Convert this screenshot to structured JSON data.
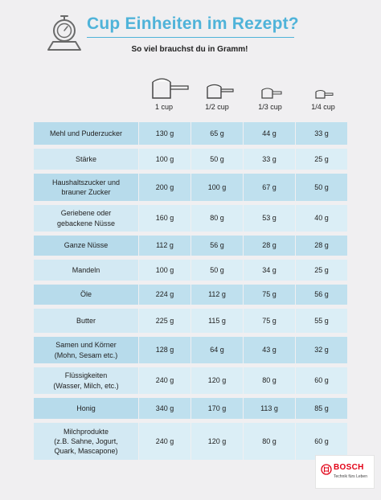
{
  "header": {
    "title": "Cup Einheiten im Rezept?",
    "subtitle": "So viel brauchst du in Gramm!",
    "accent_color": "#4fb3d9",
    "icon": "kitchen-scale-icon"
  },
  "cups": [
    {
      "label": "1 cup",
      "icon": "measuring-cup-1-icon"
    },
    {
      "label": "1/2 cup",
      "icon": "measuring-cup-half-icon"
    },
    {
      "label": "1/3 cup",
      "icon": "measuring-cup-third-icon"
    },
    {
      "label": "1/4 cup",
      "icon": "measuring-cup-quarter-icon"
    }
  ],
  "table": {
    "colors": {
      "row_dark": "#bfe0ee",
      "row_light": "#dbeef6"
    },
    "rows": [
      {
        "name": "Mehl und Puderzucker",
        "values": [
          "130 g",
          "65 g",
          "44 g",
          "33 g"
        ]
      },
      {
        "name": "Stärke",
        "values": [
          "100 g",
          "50 g",
          "33 g",
          "25 g"
        ]
      },
      {
        "name": "Haushaltszucker und\nbrauner Zucker",
        "values": [
          "200 g",
          "100 g",
          "67 g",
          "50 g"
        ]
      },
      {
        "name": "Geriebene oder\ngebackene Nüsse",
        "values": [
          "160 g",
          "80 g",
          "53 g",
          "40 g"
        ]
      },
      {
        "name": "Ganze Nüsse",
        "values": [
          "112 g",
          "56 g",
          "28 g",
          "28 g"
        ]
      },
      {
        "name": "Mandeln",
        "values": [
          "100 g",
          "50 g",
          "34 g",
          "25 g"
        ]
      },
      {
        "name": "Öle",
        "values": [
          "224 g",
          "112 g",
          "75 g",
          "56 g"
        ]
      },
      {
        "name": "Butter",
        "values": [
          "225 g",
          "115 g",
          "75 g",
          "55 g"
        ]
      },
      {
        "name": "Samen und Körner\n(Mohn, Sesam etc.)",
        "values": [
          "128 g",
          "64 g",
          "43 g",
          "32 g"
        ]
      },
      {
        "name": "Flüssigkeiten\n(Wasser, Milch, etc.)",
        "values": [
          "240 g",
          "120 g",
          "80 g",
          "60 g"
        ]
      },
      {
        "name": "Honig",
        "values": [
          "340 g",
          "170 g",
          "113 g",
          "85 g"
        ]
      },
      {
        "name": "Milchprodukte\n(z.B. Sahne, Jogurt,\nQuark, Mascapone)",
        "values": [
          "240 g",
          "120 g",
          "80 g",
          "60 g"
        ]
      }
    ]
  },
  "logo": {
    "name": "BOSCH",
    "slogan": "Technik fürs Leben",
    "color": "#e20015",
    "icon": "bosch-armature-icon"
  }
}
